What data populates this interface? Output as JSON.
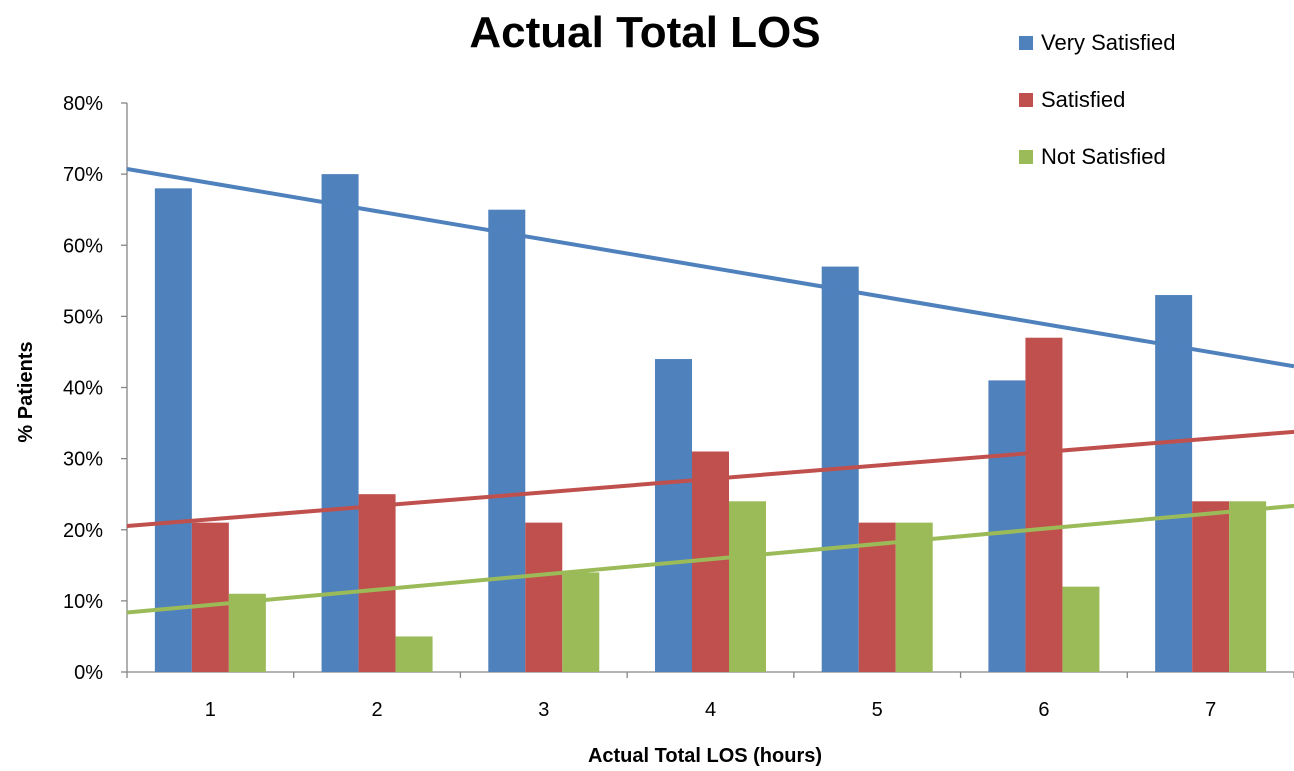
{
  "chart_data": {
    "type": "bar",
    "title": "Actual Total LOS",
    "xlabel": "Actual Total LOS (hours)",
    "ylabel": "% Patients",
    "categories": [
      "1",
      "2",
      "3",
      "4",
      "5",
      "6",
      "7"
    ],
    "ylim": [
      0,
      80
    ],
    "yticks": [
      0,
      10,
      20,
      30,
      40,
      50,
      60,
      70,
      80
    ],
    "ytick_suffix": "%",
    "grid": false,
    "legend": "top-right",
    "series": [
      {
        "name": "Very Satisfied",
        "color": "#4F81BD",
        "values": [
          68,
          70,
          65,
          44,
          57,
          41,
          53
        ]
      },
      {
        "name": "Satisfied",
        "color": "#C0504D",
        "values": [
          21,
          25,
          21,
          31,
          21,
          47,
          24
        ]
      },
      {
        "name": "Not Satisfied",
        "color": "#9BBB59",
        "values": [
          11,
          5,
          14,
          24,
          21,
          12,
          24
        ]
      }
    ],
    "trendlines": [
      {
        "series": "Very Satisfied",
        "type": "linear",
        "color": "#4F81BD"
      },
      {
        "series": "Satisfied",
        "type": "linear",
        "color": "#C0504D"
      },
      {
        "series": "Not Satisfied",
        "type": "linear",
        "color": "#9BBB59"
      }
    ]
  }
}
